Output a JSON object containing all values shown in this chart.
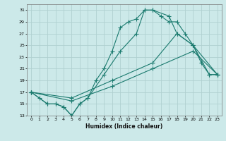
{
  "xlabel": "Humidex (Indice chaleur)",
  "ylabel": "",
  "bg_color": "#cce9e9",
  "line_color": "#1a7a6e",
  "grid_color": "#b0d0d0",
  "xlim": [
    -0.5,
    23.5
  ],
  "ylim": [
    13,
    32
  ],
  "yticks": [
    13,
    15,
    17,
    19,
    21,
    23,
    25,
    27,
    29,
    31
  ],
  "xticks": [
    0,
    1,
    2,
    3,
    4,
    5,
    6,
    7,
    8,
    9,
    10,
    11,
    12,
    13,
    14,
    15,
    16,
    17,
    18,
    19,
    20,
    21,
    22,
    23
  ],
  "lines": [
    {
      "x": [
        0,
        1,
        2,
        3,
        4,
        5,
        6,
        7,
        8,
        9,
        10,
        11,
        12,
        13,
        14,
        15,
        16,
        17,
        18,
        19,
        20,
        21,
        22,
        23
      ],
      "y": [
        17,
        16,
        15,
        15,
        14.5,
        13,
        15,
        16,
        19,
        21,
        24,
        28,
        29,
        29.5,
        31,
        31,
        30,
        29,
        29,
        27,
        25,
        22,
        20,
        20
      ]
    },
    {
      "x": [
        0,
        2,
        3,
        4,
        5,
        6,
        7,
        9,
        11,
        13,
        14,
        15,
        17,
        18,
        20,
        22,
        23
      ],
      "y": [
        17,
        15,
        15,
        14.5,
        13,
        15,
        16,
        20,
        24,
        27,
        31,
        31,
        30,
        27,
        25,
        20,
        20
      ]
    },
    {
      "x": [
        0,
        5,
        10,
        15,
        18,
        20,
        23
      ],
      "y": [
        17,
        16,
        19,
        22,
        27,
        25,
        20
      ]
    },
    {
      "x": [
        0,
        5,
        10,
        15,
        20,
        23
      ],
      "y": [
        17,
        15.5,
        18,
        21,
        24,
        20
      ]
    }
  ]
}
